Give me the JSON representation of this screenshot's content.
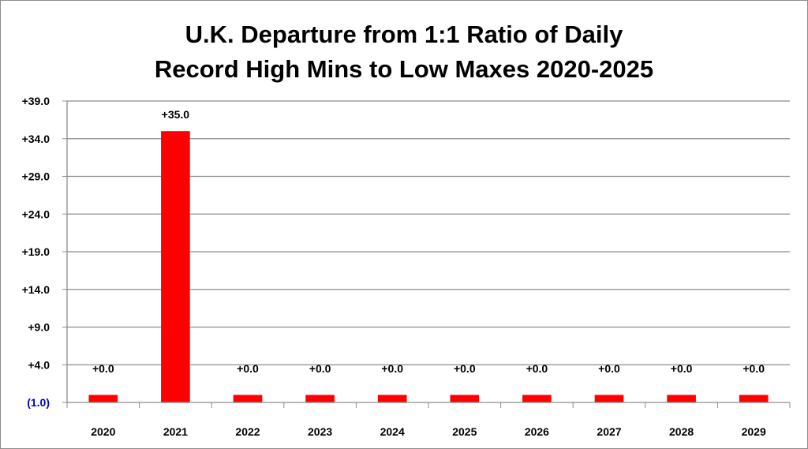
{
  "chart_data": {
    "type": "bar",
    "title_lines": [
      "U.K. Departure from 1:1 Ratio of Daily",
      "Record High Mins to Low Maxes 2020-2025"
    ],
    "categories": [
      "2020",
      "2021",
      "2022",
      "2023",
      "2024",
      "2025",
      "2026",
      "2027",
      "2028",
      "2029"
    ],
    "values": [
      0,
      35,
      0,
      0,
      0,
      0,
      0,
      0,
      0,
      0
    ],
    "data_labels": [
      "+0.0",
      "+35.0",
      "+0.0",
      "+0.0",
      "+0.0",
      "+0.0",
      "+0.0",
      "+0.0",
      "+0.0",
      "+0.0"
    ],
    "y_ticks": [
      -1,
      4,
      9,
      14,
      19,
      24,
      29,
      34,
      39
    ],
    "y_tick_labels": [
      "(1.0)",
      "+4.0",
      "+9.0",
      "+14.0",
      "+19.0",
      "+24.0",
      "+29.0",
      "+34.0",
      "+39.0"
    ],
    "ylim": [
      -1,
      39
    ],
    "grid": true,
    "legend": "none",
    "colors": {
      "bar": "#ff0000",
      "negative_tick": "#0000cc",
      "tick": "#000000",
      "grid": "#8c8c8c"
    }
  }
}
